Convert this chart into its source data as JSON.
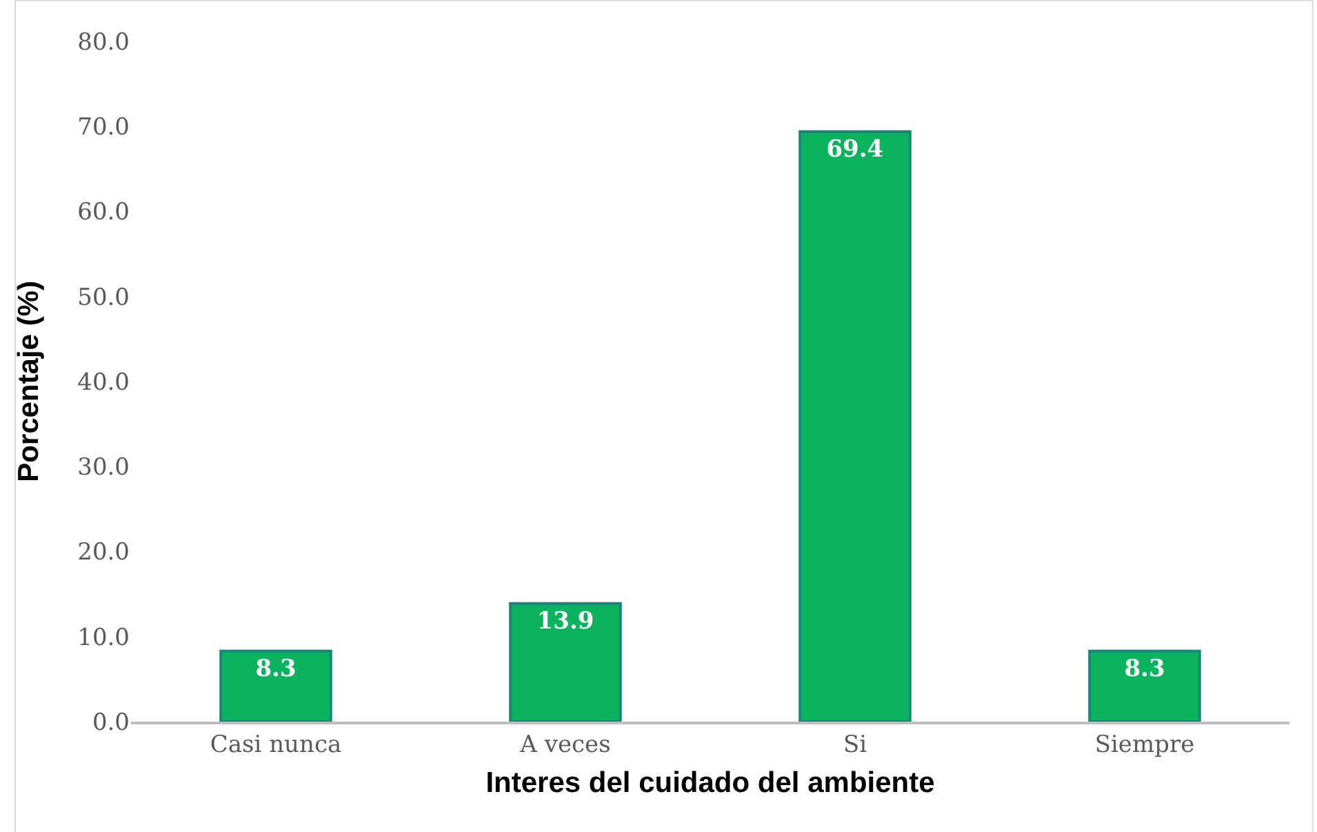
{
  "chart_data": {
    "type": "bar",
    "xlabel": "Interes del cuidado del ambiente",
    "ylabel": "Porcentaje (%)",
    "categories": [
      "Casi nunca",
      "A veces",
      "Si",
      "Siempre"
    ],
    "values": [
      8.3,
      13.9,
      69.4,
      8.3
    ],
    "color": "#0bb35f",
    "ylim": [
      0,
      80
    ],
    "yticks": [
      {
        "value": 0,
        "label": "0.0"
      },
      {
        "value": 10,
        "label": "10.0"
      },
      {
        "value": 20,
        "label": "20.0"
      },
      {
        "value": 30,
        "label": "30.0"
      },
      {
        "value": 40,
        "label": "40.0"
      },
      {
        "value": 50,
        "label": "50.0"
      },
      {
        "value": 60,
        "label": "60.0"
      },
      {
        "value": 70,
        "label": "70.0"
      },
      {
        "value": 80,
        "label": "80.0"
      }
    ],
    "data_labels": true,
    "legend": false
  }
}
